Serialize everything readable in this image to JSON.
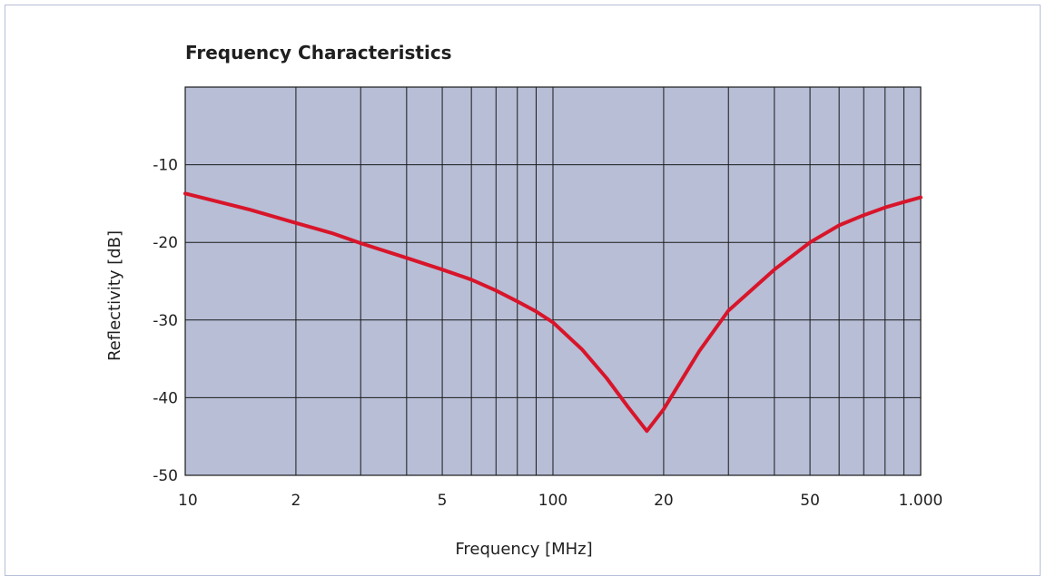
{
  "chart_data": {
    "type": "line",
    "title": "Frequency Characteristics",
    "xlabel": "Frequency [MHz]",
    "ylabel": "Reflectivity [dB]",
    "x_scale": "log",
    "xlim": [
      10,
      1000
    ],
    "ylim": [
      -50,
      0
    ],
    "grid": true,
    "x_ticks": [
      {
        "value": 10,
        "label": "10"
      },
      {
        "value": 20,
        "label": "2"
      },
      {
        "value": 50,
        "label": "5"
      },
      {
        "value": 100,
        "label": "100"
      },
      {
        "value": 200,
        "label": "20"
      },
      {
        "value": 500,
        "label": "50"
      },
      {
        "value": 1000,
        "label": "1.000"
      }
    ],
    "x_gridlines": [
      20,
      30,
      40,
      50,
      60,
      70,
      80,
      90,
      100,
      200,
      300,
      400,
      500,
      600,
      700,
      800,
      900
    ],
    "y_ticks": [
      {
        "value": -10,
        "label": "-10"
      },
      {
        "value": -20,
        "label": "-20"
      },
      {
        "value": -30,
        "label": "-30"
      },
      {
        "value": -40,
        "label": "-40"
      },
      {
        "value": -50,
        "label": "-50"
      }
    ],
    "y_gridlines": [
      -10,
      -20,
      -30,
      -40
    ],
    "series": [
      {
        "x": [
          10,
          15,
          20,
          25,
          30,
          40,
          50,
          60,
          70,
          80,
          90,
          100,
          120,
          140,
          160,
          180,
          200,
          250,
          300,
          400,
          500,
          600,
          700,
          800,
          900,
          1000
        ],
        "y": [
          -13.7,
          -15.8,
          -17.5,
          -18.8,
          -20.1,
          -22.0,
          -23.5,
          -24.8,
          -26.2,
          -27.6,
          -28.9,
          -30.3,
          -33.8,
          -37.5,
          -41.2,
          -44.3,
          -41.5,
          -34.0,
          -28.8,
          -23.5,
          -20.0,
          -17.8,
          -16.5,
          -15.5,
          -14.8,
          -14.2
        ],
        "color": "#d8152a"
      }
    ],
    "colors": {
      "plot_background": "#b7bed6",
      "grid": "#1a1a1a",
      "line": "#d8152a"
    }
  }
}
